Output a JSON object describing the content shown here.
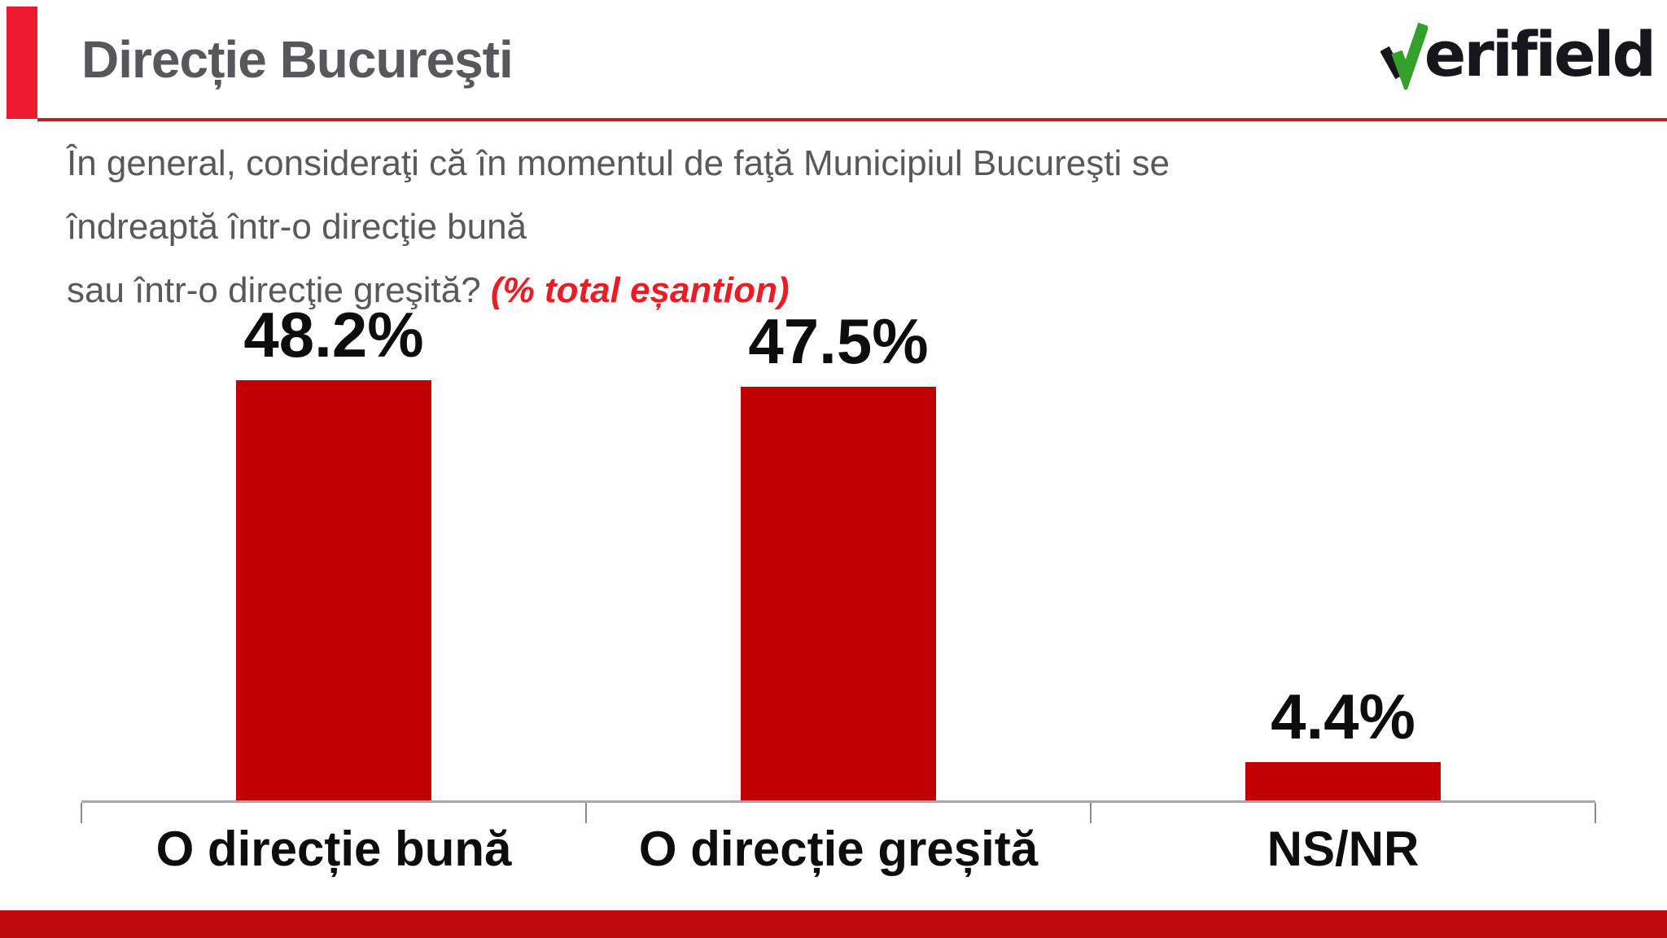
{
  "header": {
    "title": "Direcție Bucureşti",
    "accent_color": "#ec1b2d",
    "underline_color": "#b32423",
    "logo": {
      "name": "verifield",
      "text": "erifield",
      "check_color": "#33a02c",
      "text_color": "#17171b"
    }
  },
  "question": {
    "line1": "În general, consideraţi că în momentul de faţă Municipiul Bucureşti se îndreaptă într-o direcţie bună",
    "line2": "sau într-o direcţie greşită?",
    "note": "(% total eșantion)",
    "text_color": "#595959",
    "note_color": "#ec1c24"
  },
  "chart_data": {
    "type": "bar",
    "title": "Direcție Bucureşti",
    "categories": [
      "O direcție bună",
      "O direcție greșită",
      "NS/NR"
    ],
    "values": [
      48.2,
      47.5,
      4.4
    ],
    "value_labels": [
      "48.2%",
      "47.5%",
      "4.4%"
    ],
    "unit": "%",
    "bar_color": "#c00000",
    "axis_color": "#a6a6a6",
    "ylim": [
      0,
      60
    ],
    "grid": false,
    "legend": false
  },
  "footer": {
    "band_color": "#be0a0e"
  }
}
